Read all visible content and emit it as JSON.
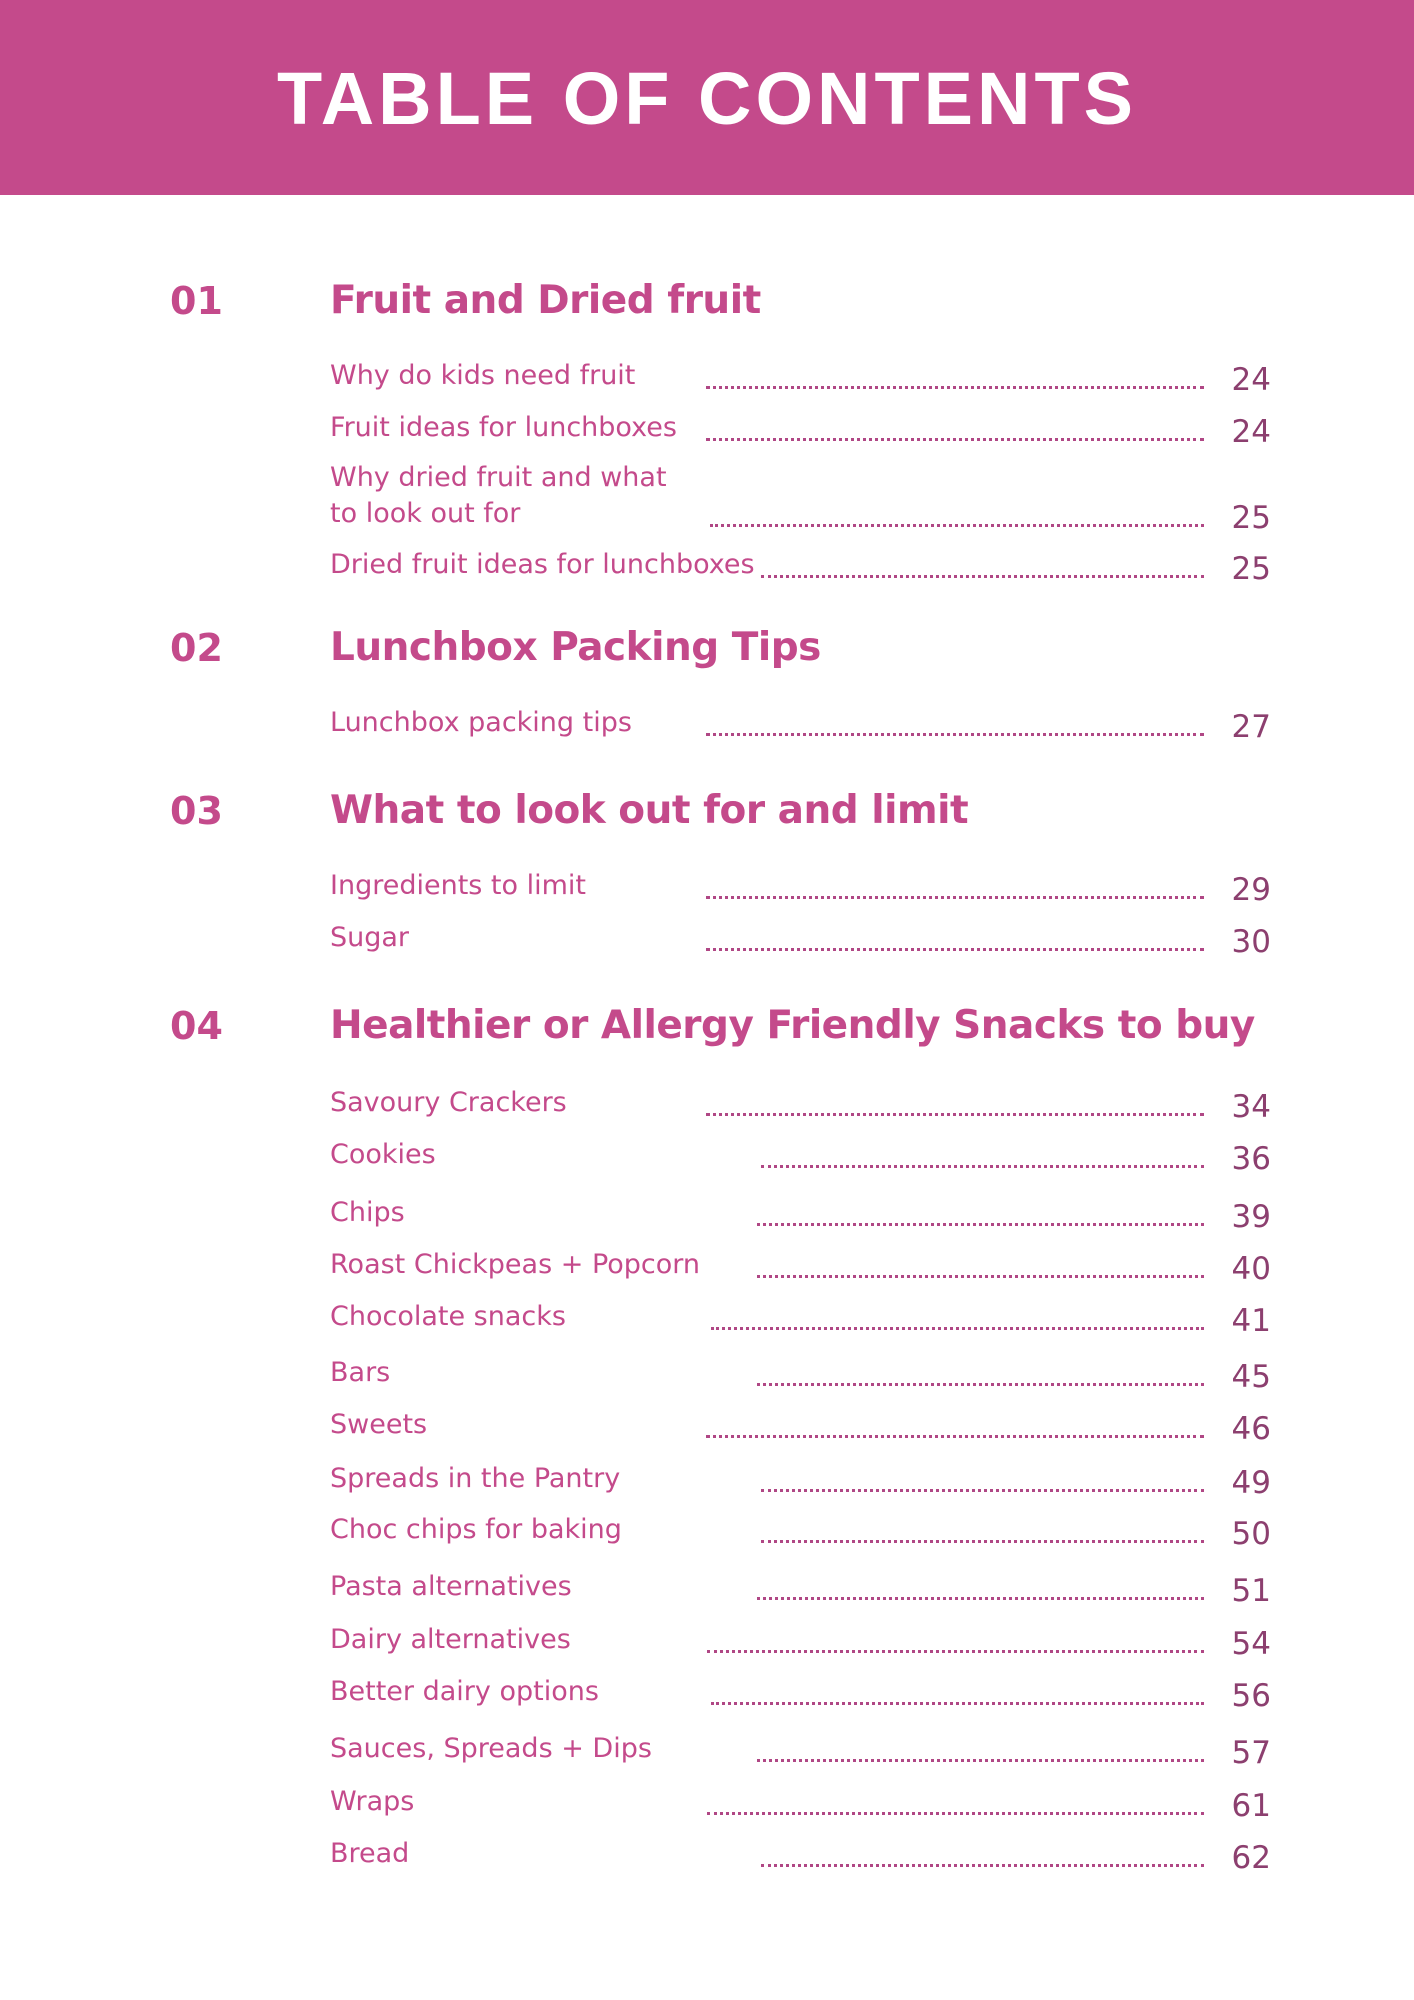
{
  "header": {
    "title": "TABLE OF CONTENTS"
  },
  "colors": {
    "accent": "#c44a8b",
    "page_number": "#8c3f6f",
    "background": "#ffffff",
    "header_text": "#ffffff"
  },
  "sections": [
    {
      "number": "01",
      "title": "Fruit and Dried fruit",
      "items": [
        {
          "label": "Why do kids need fruit",
          "page": "24"
        },
        {
          "label": "Fruit ideas for lunchboxes",
          "page": "24"
        },
        {
          "label": "Why dried fruit and what",
          "label2": "to look out for",
          "page": "25"
        },
        {
          "label": "Dried fruit ideas for lunchboxes",
          "page": "25"
        }
      ]
    },
    {
      "number": "02",
      "title": "Lunchbox Packing Tips",
      "items": [
        {
          "label": "Lunchbox packing tips",
          "page": "27"
        }
      ]
    },
    {
      "number": "03",
      "title": "What to look out for and limit",
      "items": [
        {
          "label": "Ingredients to limit",
          "page": "29"
        },
        {
          "label": "Sugar",
          "page": "30"
        }
      ]
    },
    {
      "number": "04",
      "title": "Healthier or Allergy Friendly Snacks to buy",
      "items": [
        {
          "label": "Savoury Crackers",
          "page": "34"
        },
        {
          "label": "Cookies",
          "page": "36"
        },
        {
          "label": "Chips",
          "page": "39"
        },
        {
          "label": "Roast Chickpeas + Popcorn",
          "page": "40"
        },
        {
          "label": "Chocolate snacks",
          "page": "41"
        },
        {
          "label": "Bars",
          "page": "45"
        },
        {
          "label": "Sweets",
          "page": "46"
        },
        {
          "label": "Spreads in the Pantry",
          "page": "49"
        },
        {
          "label": "Choc chips for baking",
          "page": "50"
        },
        {
          "label": "Pasta alternatives",
          "page": "51"
        },
        {
          "label": "Dairy alternatives",
          "page": "54"
        },
        {
          "label": "Better dairy options",
          "page": "56"
        },
        {
          "label": "Sauces, Spreads + Dips",
          "page": "57"
        },
        {
          "label": "Wraps",
          "page": "61"
        },
        {
          "label": "Bread",
          "page": "62"
        }
      ]
    }
  ]
}
